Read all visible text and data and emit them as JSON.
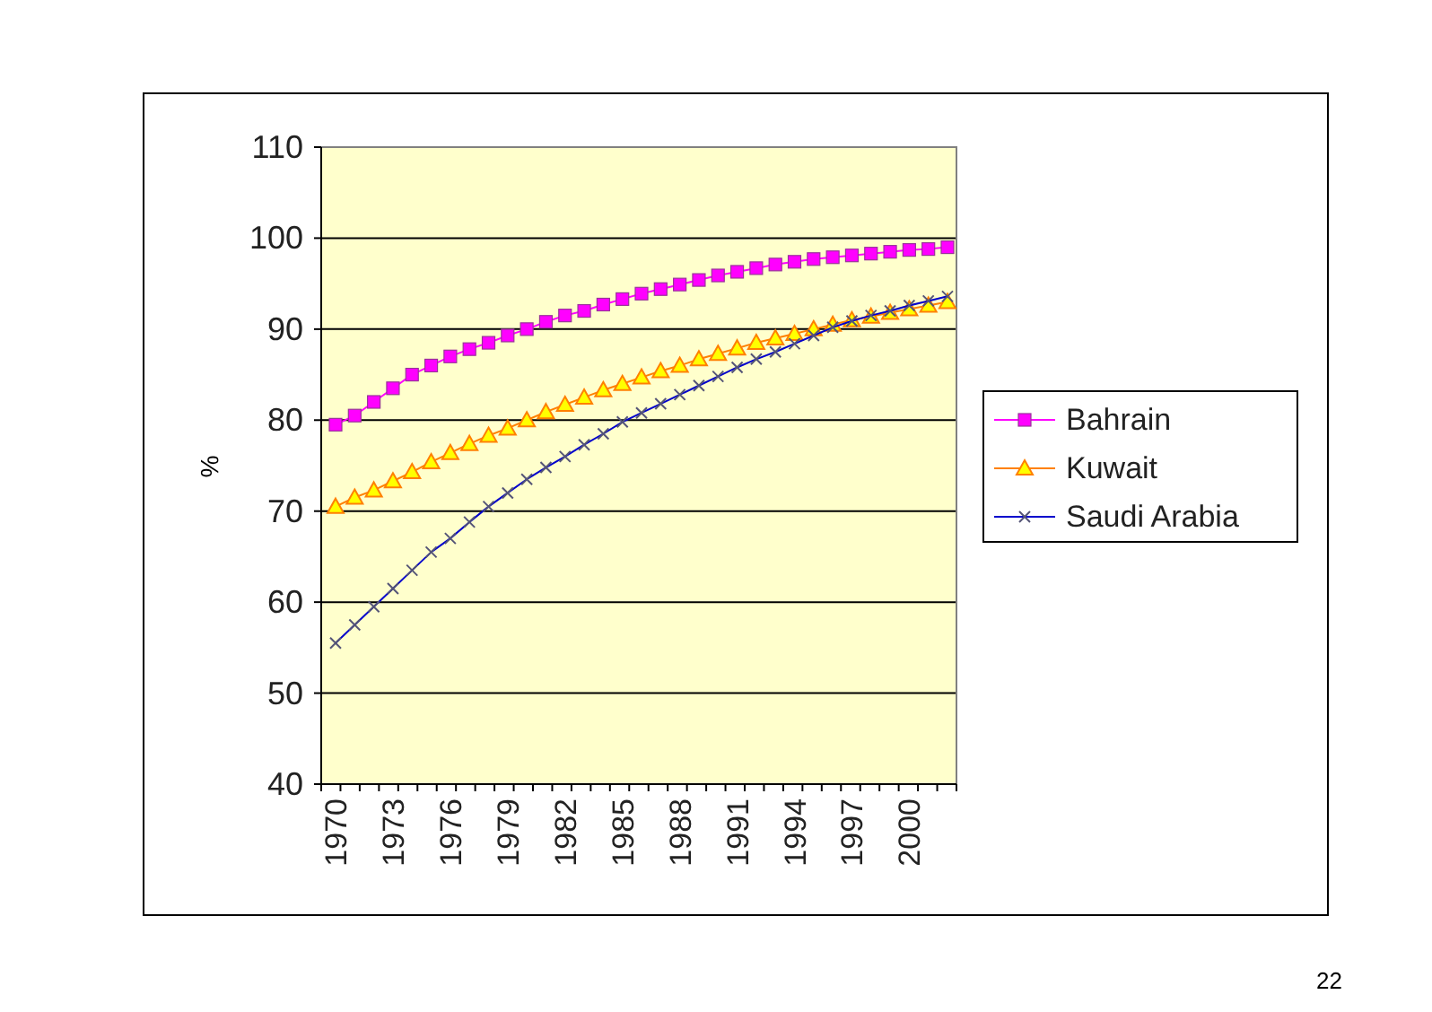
{
  "chart_data": {
    "type": "line",
    "ylabel": "%",
    "categories": [
      "1970",
      null,
      null,
      "1973",
      null,
      null,
      "1976",
      null,
      null,
      "1979",
      null,
      null,
      "1982",
      null,
      null,
      "1985",
      null,
      null,
      "1988",
      null,
      null,
      "1991",
      null,
      null,
      "1994",
      null,
      null,
      "1997",
      null,
      null,
      "2000",
      null,
      null
    ],
    "series": [
      {
        "name": "Bahrain",
        "color": "#ff00ff",
        "marker": "square",
        "values": [
          79.5,
          80.5,
          82,
          83.5,
          85,
          86,
          87,
          87.8,
          88.5,
          89.3,
          90,
          90.8,
          91.5,
          92,
          92.7,
          93.3,
          93.9,
          94.4,
          94.9,
          95.4,
          95.9,
          96.3,
          96.7,
          97.1,
          97.4,
          97.7,
          97.9,
          98.1,
          98.3,
          98.5,
          98.7,
          98.8,
          99
        ]
      },
      {
        "name": "Kuwait",
        "color": "#ff8000",
        "marker": "triangle",
        "values": [
          70.5,
          71.5,
          72.3,
          73.3,
          74.3,
          75.4,
          76.4,
          77.4,
          78.3,
          79.1,
          80,
          80.9,
          81.7,
          82.5,
          83.3,
          84,
          84.7,
          85.4,
          86,
          86.7,
          87.3,
          87.9,
          88.5,
          89,
          89.5,
          90,
          90.5,
          91,
          91.4,
          91.8,
          92.2,
          92.6,
          93
        ]
      },
      {
        "name": "Saudi Arabia",
        "color": "#0000cc",
        "marker": "cross",
        "values": [
          55.5,
          57.5,
          59.5,
          61.5,
          63.5,
          65.5,
          67,
          68.8,
          70.5,
          72,
          73.5,
          74.8,
          76,
          77.3,
          78.5,
          79.8,
          80.8,
          81.8,
          82.8,
          83.8,
          84.8,
          85.8,
          86.7,
          87.5,
          88.4,
          89.3,
          90.2,
          90.9,
          91.5,
          92,
          92.6,
          93.1,
          93.6
        ]
      }
    ],
    "ylim": [
      40,
      110
    ],
    "yticks": [
      40,
      50,
      60,
      70,
      80,
      90,
      100,
      110
    ],
    "grid": "y",
    "legend": "right",
    "annotations": [
      "22"
    ]
  }
}
